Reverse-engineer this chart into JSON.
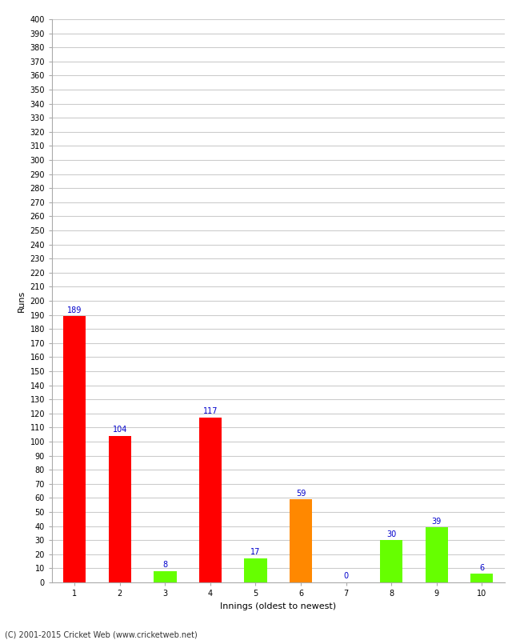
{
  "xlabel": "Innings (oldest to newest)",
  "ylabel": "Runs",
  "categories": [
    1,
    2,
    3,
    4,
    5,
    6,
    7,
    8,
    9,
    10
  ],
  "values": [
    189,
    104,
    8,
    117,
    17,
    59,
    0,
    30,
    39,
    6
  ],
  "bar_colors": [
    "#ff0000",
    "#ff0000",
    "#66ff00",
    "#ff0000",
    "#66ff00",
    "#ff8800",
    "#66ff00",
    "#66ff00",
    "#66ff00",
    "#66ff00"
  ],
  "ylim": [
    0,
    400
  ],
  "ytick_step": 10,
  "label_color": "#0000cc",
  "label_fontsize": 7,
  "axis_fontsize": 8,
  "tick_fontsize": 7,
  "background_color": "#ffffff",
  "grid_color": "#cccccc",
  "footer": "(C) 2001-2015 Cricket Web (www.cricketweb.net)"
}
